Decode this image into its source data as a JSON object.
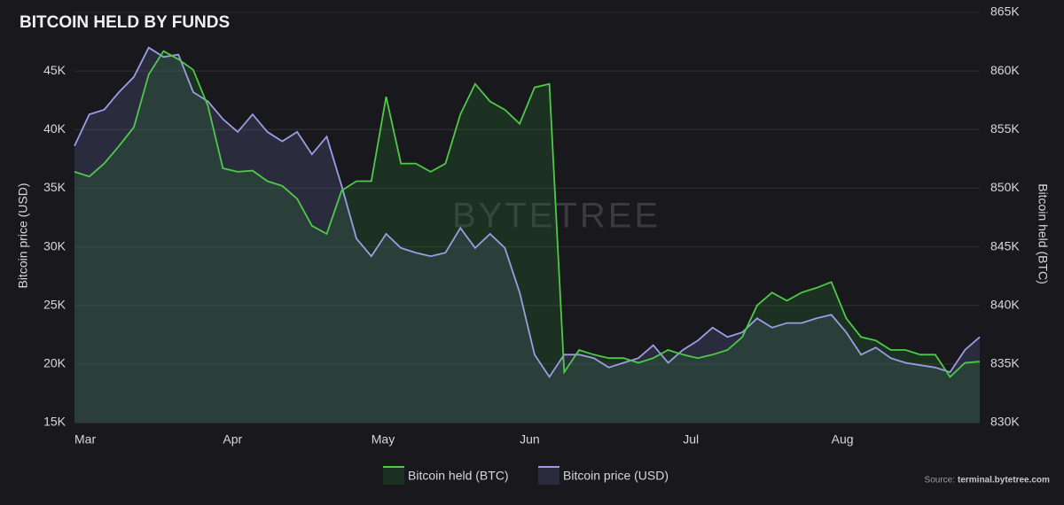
{
  "chart_data": {
    "type": "area",
    "title": "BITCOIN HELD BY FUNDS",
    "y_label": "Bitcoin price (USD)",
    "y2_label": "Bitcoin held (BTC)",
    "watermark": "BYTETREE",
    "source_label": "Source:",
    "source": "terminal.bytetree.com",
    "categories": [
      "Mar",
      null,
      null,
      null,
      null,
      null,
      null,
      null,
      null,
      null,
      "Apr",
      null,
      null,
      null,
      null,
      null,
      null,
      null,
      null,
      null,
      "May",
      null,
      null,
      null,
      null,
      null,
      null,
      null,
      null,
      null,
      "Jun",
      null,
      null,
      null,
      null,
      null,
      null,
      null,
      null,
      null,
      null,
      "Jul",
      null,
      null,
      null,
      null,
      null,
      null,
      null,
      null,
      null,
      "Aug",
      null,
      null,
      null,
      null,
      null,
      null,
      null,
      null,
      null,
      null
    ],
    "series": [
      {
        "name": "Bitcoin price (USD)",
        "color": "#9b9de3",
        "axis": "y",
        "values": [
          38600,
          41300,
          41700,
          43200,
          44500,
          47000,
          46200,
          46400,
          43200,
          42400,
          40900,
          39800,
          41300,
          39800,
          39000,
          39800,
          37900,
          39400,
          35200,
          30700,
          29200,
          31100,
          29900,
          29500,
          29200,
          29500,
          31600,
          29900,
          31100,
          29900,
          26100,
          20800,
          18900,
          20800,
          20800,
          20500,
          19700,
          20100,
          20500,
          21600,
          20100,
          21200,
          22000,
          23100,
          22300,
          22700,
          23900,
          23100,
          23500,
          23500,
          23900,
          24200,
          22700,
          20800,
          21400,
          20500,
          20100,
          19900,
          19700,
          19300,
          21200,
          22300
        ]
      },
      {
        "name": "Bitcoin held (BTC)",
        "color": "#4ec94a",
        "axis": "y2",
        "values": [
          851400,
          851000,
          852100,
          853600,
          855200,
          859700,
          861700,
          861000,
          860100,
          857000,
          851700,
          851400,
          851500,
          850600,
          850200,
          849100,
          846800,
          846100,
          849800,
          850600,
          850600,
          857800,
          852100,
          852100,
          851400,
          852100,
          856300,
          858900,
          857400,
          856700,
          855500,
          858600,
          858900,
          834300,
          836200,
          835800,
          835500,
          835500,
          835100,
          835500,
          836200,
          835800,
          835500,
          835800,
          836200,
          837300,
          840000,
          841100,
          840400,
          841100,
          841500,
          842000,
          838900,
          837300,
          837000,
          836200,
          836200,
          835800,
          835800,
          833900,
          835100,
          835200
        ]
      }
    ],
    "ylim": [
      15000,
      50000
    ],
    "yticks": [
      {
        "value": 15000,
        "label": "15K"
      },
      {
        "value": 20000,
        "label": "20K"
      },
      {
        "value": 25000,
        "label": "25K"
      },
      {
        "value": 30000,
        "label": "30K"
      },
      {
        "value": 35000,
        "label": "35K"
      },
      {
        "value": 40000,
        "label": "40K"
      },
      {
        "value": 45000,
        "label": "45K"
      }
    ],
    "y2lim": [
      830000,
      865000
    ],
    "y2ticks": [
      {
        "value": 830000,
        "label": "830K"
      },
      {
        "value": 835000,
        "label": "835K"
      },
      {
        "value": 840000,
        "label": "840K"
      },
      {
        "value": 845000,
        "label": "845K"
      },
      {
        "value": 850000,
        "label": "850K"
      },
      {
        "value": 855000,
        "label": "855K"
      },
      {
        "value": 860000,
        "label": "860K"
      },
      {
        "value": 865000,
        "label": "865K"
      }
    ],
    "grid": true
  }
}
